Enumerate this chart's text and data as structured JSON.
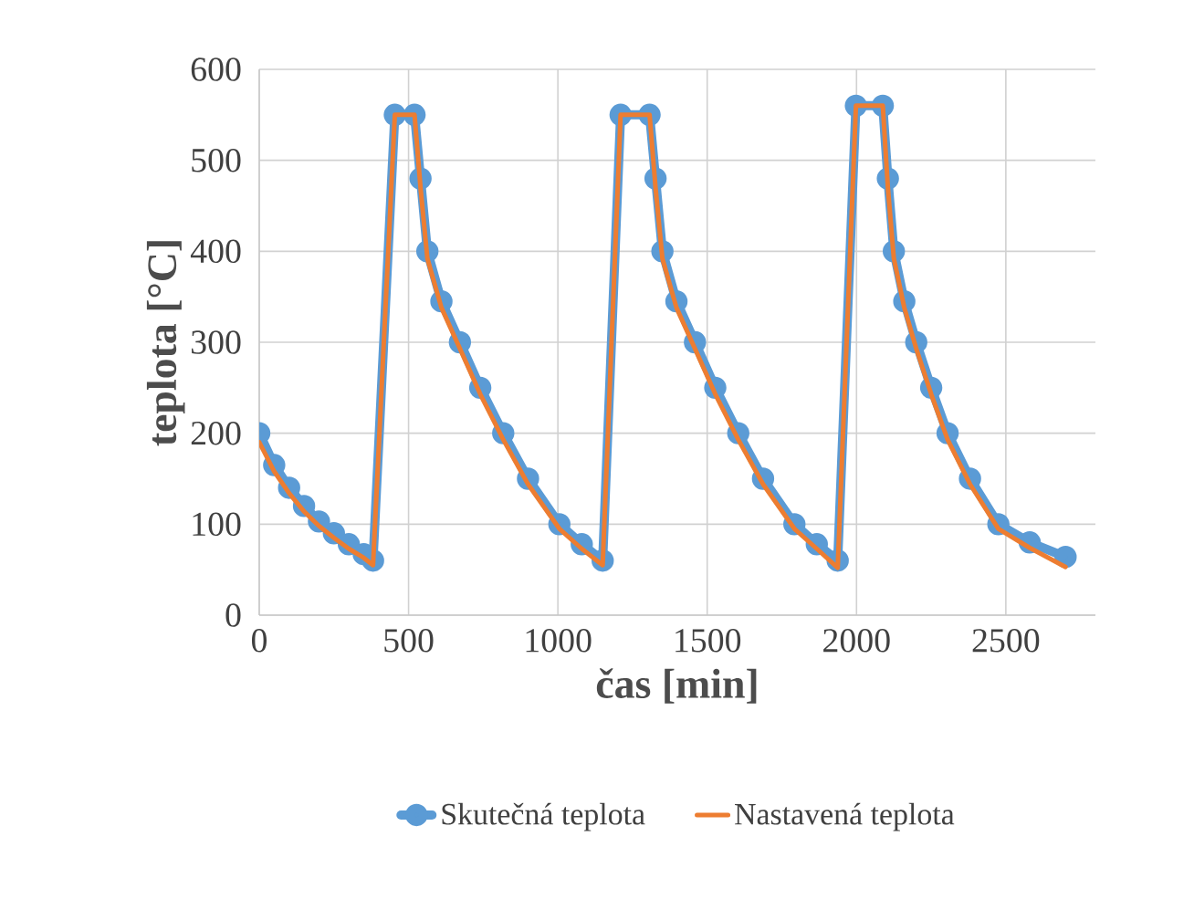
{
  "chart_data": {
    "type": "line",
    "xlabel": "čas [min]",
    "ylabel": "teplota [°C]",
    "xlim": [
      0,
      2800
    ],
    "ylim": [
      0,
      600
    ],
    "xticks": [
      0,
      500,
      1000,
      1500,
      2000,
      2500
    ],
    "yticks": [
      0,
      100,
      200,
      300,
      400,
      500,
      600
    ],
    "grid": true,
    "legend": "bottom",
    "series": [
      {
        "name": "Skutečná teplota",
        "color": "#5b9bd5",
        "marker": "circle",
        "x": [
          0,
          50,
          100,
          150,
          200,
          250,
          300,
          350,
          381,
          454,
          520,
          540,
          563,
          610,
          672,
          740,
          817,
          900,
          1005,
          1080,
          1150,
          1210,
          1307,
          1327,
          1350,
          1397,
          1459,
          1527,
          1604,
          1687,
          1792,
          1867,
          1937,
          1998,
          2088,
          2105,
          2125,
          2160,
          2200,
          2250,
          2305,
          2380,
          2475,
          2580,
          2700
        ],
        "values": [
          200,
          165,
          140,
          120,
          103,
          90,
          78,
          67,
          60,
          550,
          550,
          480,
          400,
          345,
          300,
          250,
          200,
          150,
          100,
          78,
          60,
          550,
          550,
          480,
          400,
          345,
          300,
          250,
          200,
          150,
          100,
          78,
          60,
          560,
          560,
          480,
          400,
          345,
          300,
          250,
          200,
          150,
          100,
          80,
          64
        ]
      },
      {
        "name": "Nastavená teplota",
        "color": "#ed7d31",
        "marker": "none",
        "x": [
          0,
          50,
          100,
          150,
          200,
          250,
          300,
          350,
          381,
          454,
          520,
          540,
          563,
          610,
          672,
          740,
          817,
          900,
          1005,
          1080,
          1150,
          1210,
          1307,
          1327,
          1350,
          1397,
          1459,
          1527,
          1604,
          1687,
          1792,
          1867,
          1937,
          1998,
          2088,
          2105,
          2125,
          2160,
          2200,
          2250,
          2305,
          2380,
          2475,
          2580,
          2700
        ],
        "values": [
          190,
          158,
          134,
          114,
          98,
          85,
          73,
          63,
          55,
          550,
          550,
          470,
          392,
          338,
          293,
          243,
          193,
          144,
          95,
          73,
          55,
          550,
          550,
          470,
          392,
          338,
          293,
          243,
          193,
          144,
          95,
          73,
          52,
          560,
          560,
          470,
          392,
          338,
          293,
          243,
          193,
          144,
          95,
          74,
          53
        ]
      }
    ]
  }
}
